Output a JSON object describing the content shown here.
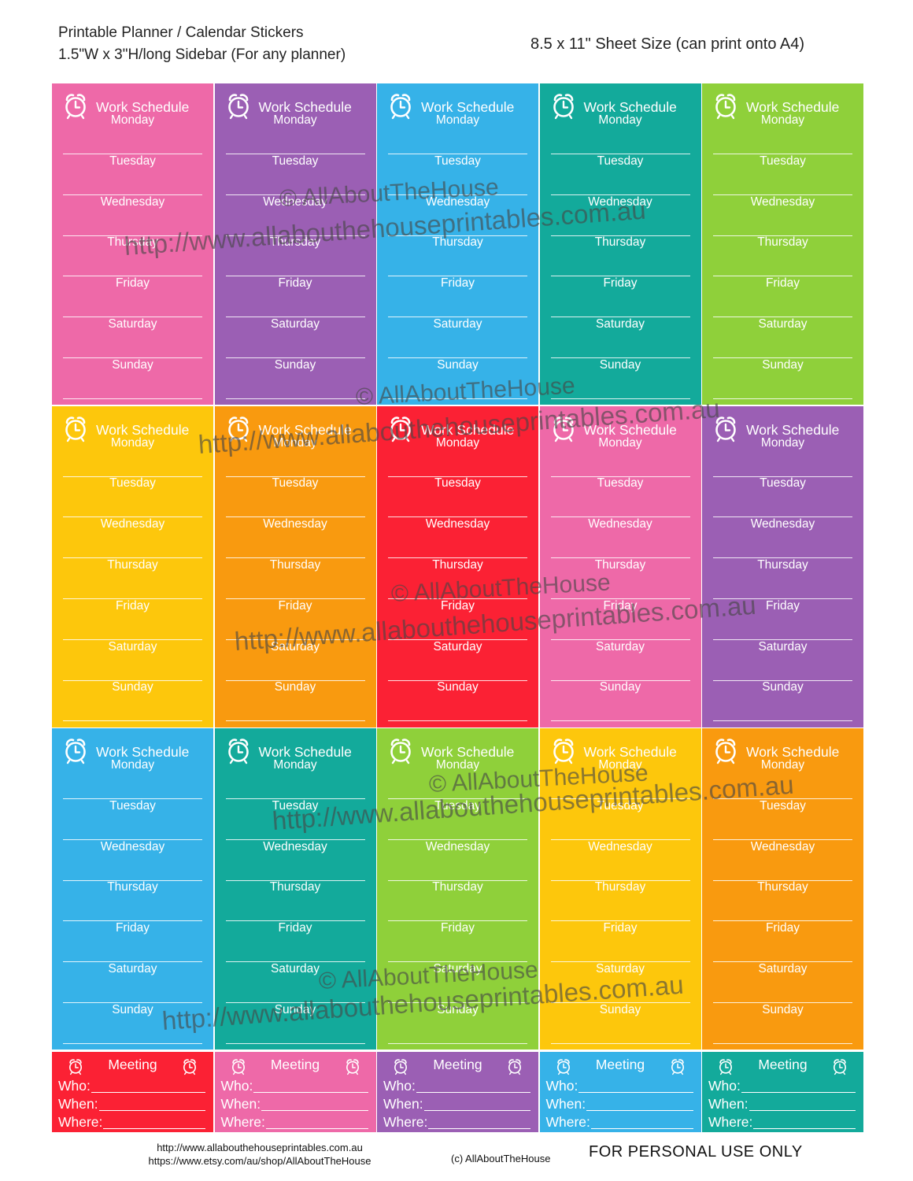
{
  "header": {
    "title_line1": "Printable Planner / Calendar Stickers",
    "title_line2": "1.5\"W x 3\"H/long Sidebar (For any planner)",
    "sheet_size": "8.5 x 11\" Sheet Size (can print onto A4)"
  },
  "sticker_title": "Work Schedule",
  "days": [
    "Monday",
    "Tuesday",
    "Wednesday",
    "Thursday",
    "Friday",
    "Saturday",
    "Sunday"
  ],
  "stickers": [
    {
      "color": "#ee69a8"
    },
    {
      "color": "#9b5fb4"
    },
    {
      "color": "#36b2e8"
    },
    {
      "color": "#13aa9b"
    },
    {
      "color": "#8fd03a"
    },
    {
      "color": "#fdc70c"
    },
    {
      "color": "#f99a0f"
    },
    {
      "color": "#fb2134"
    },
    {
      "color": "#ee69a8"
    },
    {
      "color": "#9b5fb4"
    },
    {
      "color": "#36b2e8"
    },
    {
      "color": "#13aa9b"
    },
    {
      "color": "#8fd03a"
    },
    {
      "color": "#fdc70c"
    },
    {
      "color": "#f99a0f"
    }
  ],
  "meeting": {
    "title": "Meeting",
    "who": "Who:",
    "when": "When:",
    "where": "Where:",
    "colors": [
      "#fb2134",
      "#ee69a8",
      "#9b5fb4",
      "#36b2e8",
      "#13aa9b"
    ]
  },
  "watermark": {
    "copyright": "© AllAboutTheHouse",
    "url": "http://www.allabouthehouseprintables.com.au"
  },
  "footer": {
    "url1": "http://www.allabouthehouseprintables.com.au",
    "url2": "https://www.etsy.com/au/shop/AllAboutTheHouse",
    "copyright": "(c) AllAboutTheHouse",
    "personal_use": "FOR PERSONAL USE ONLY"
  }
}
